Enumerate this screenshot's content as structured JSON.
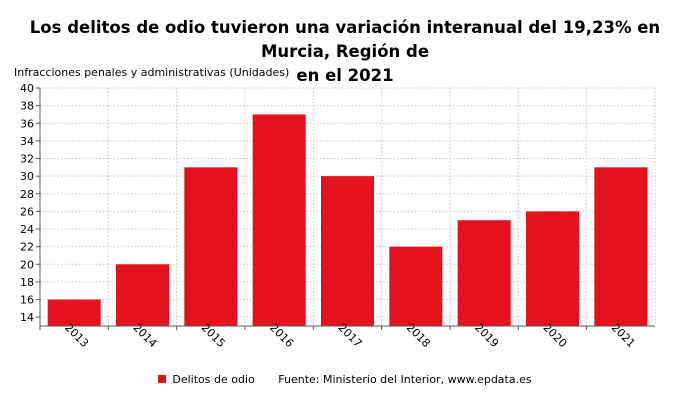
{
  "chart_data": {
    "type": "bar",
    "title": "Los delitos de odio tuvieron una variación interanual del 19,23% en Murcia, Región de en el 2021",
    "title_lines": [
      "Los delitos de odio tuvieron una variación interanual del 19,23% en Murcia, Región de",
      "en el 2021"
    ],
    "ylabel": "Infracciones penales y administrativas (Unidades)",
    "xlabel": "",
    "categories": [
      "2013",
      "2014",
      "2015",
      "2016",
      "2017",
      "2018",
      "2019",
      "2020",
      "2021"
    ],
    "series": [
      {
        "name": "Delitos de odio",
        "values": [
          16,
          20,
          31,
          37,
          30,
          22,
          25,
          26,
          31
        ],
        "color": "#e3121d"
      }
    ],
    "ylim": [
      13,
      40
    ],
    "yticks": [
      14,
      16,
      18,
      20,
      22,
      24,
      26,
      28,
      30,
      32,
      34,
      36,
      38,
      40
    ],
    "grid": true,
    "legend_position": "bottom",
    "source": "Fuente: Ministerio del Interior, www.epdata.es"
  }
}
